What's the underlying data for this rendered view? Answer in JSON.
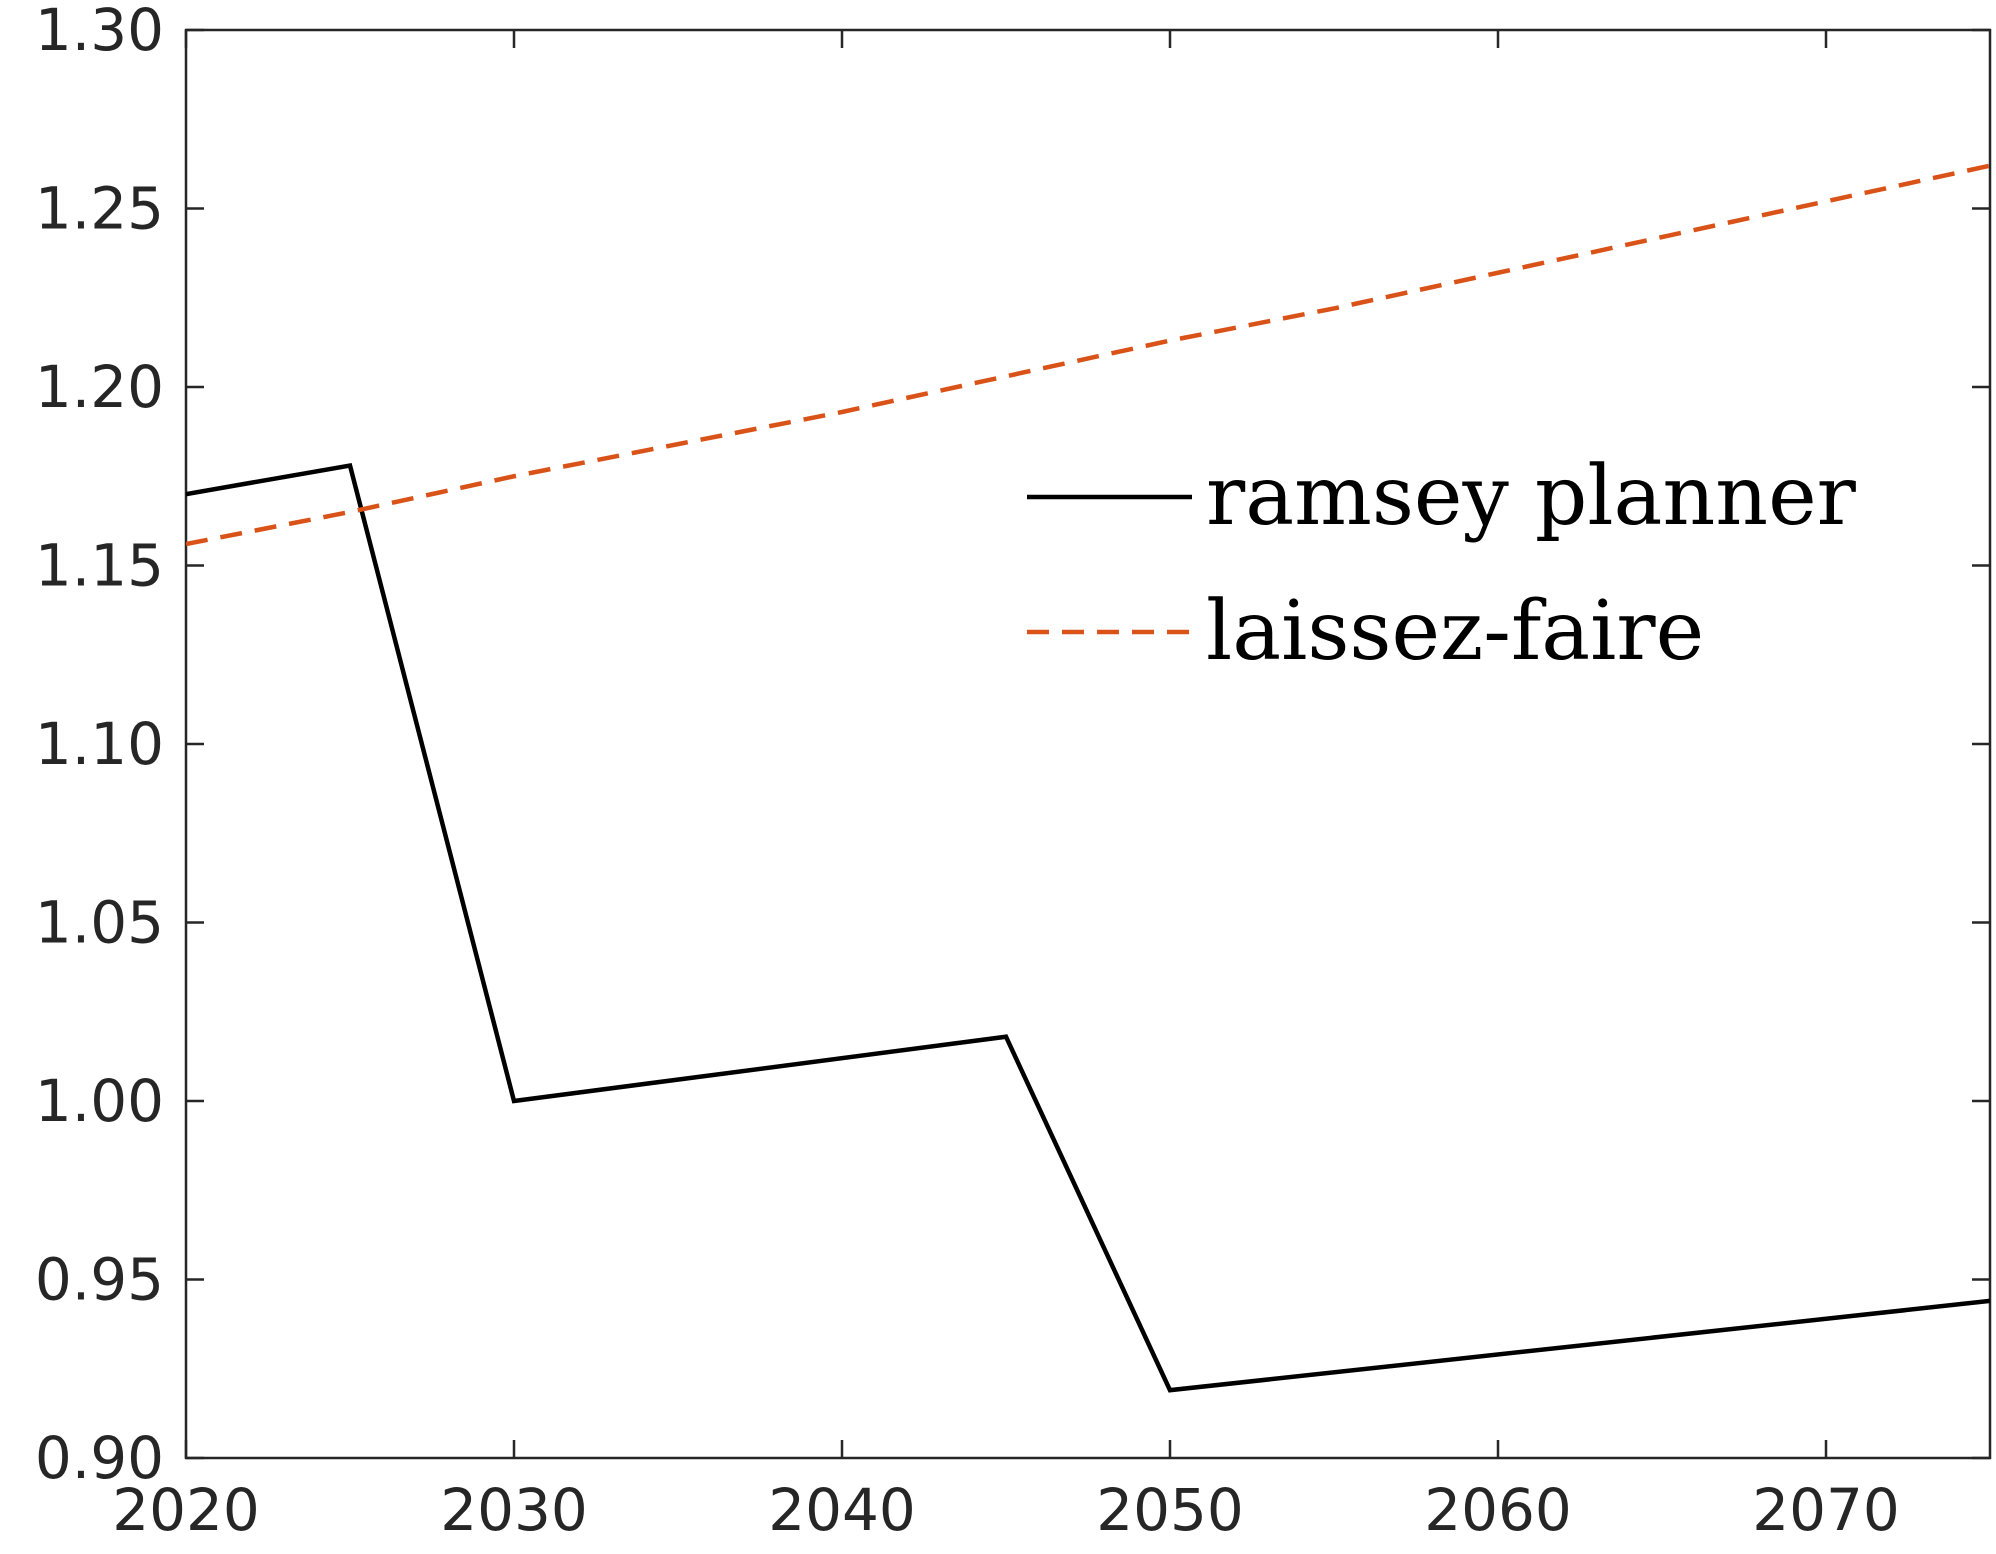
{
  "chart_data": {
    "type": "line",
    "title": "",
    "xlabel": "",
    "ylabel": "",
    "xlim": [
      2020,
      2075
    ],
    "ylim": [
      0.9,
      1.3
    ],
    "xticks": [
      2020,
      2030,
      2040,
      2050,
      2060,
      2070
    ],
    "xtick_labels": [
      "2020",
      "2030",
      "2040",
      "2050",
      "2060",
      "2070"
    ],
    "yticks": [
      0.9,
      0.95,
      1.0,
      1.05,
      1.1,
      1.15,
      1.2,
      1.25,
      1.3
    ],
    "ytick_labels": [
      "0.90",
      "0.95",
      "1.00",
      "1.05",
      "1.10",
      "1.15",
      "1.20",
      "1.25",
      "1.30"
    ],
    "grid": false,
    "legend_position": "upper-right",
    "series": [
      {
        "name": "ramsey planner",
        "color": "#000000",
        "line_style": "solid",
        "x": [
          2020,
          2025,
          2030,
          2045,
          2050,
          2075
        ],
        "y": [
          1.17,
          1.178,
          1.0,
          1.018,
          0.919,
          0.944
        ]
      },
      {
        "name": "laissez-faire",
        "color": "#D95319",
        "line_style": "dashed",
        "x": [
          2020,
          2025,
          2030,
          2035,
          2040,
          2045,
          2050,
          2055,
          2060,
          2065,
          2070,
          2075
        ],
        "y": [
          1.156,
          1.165,
          1.175,
          1.184,
          1.193,
          1.203,
          1.213,
          1.222,
          1.232,
          1.242,
          1.252,
          1.262
        ]
      }
    ]
  }
}
